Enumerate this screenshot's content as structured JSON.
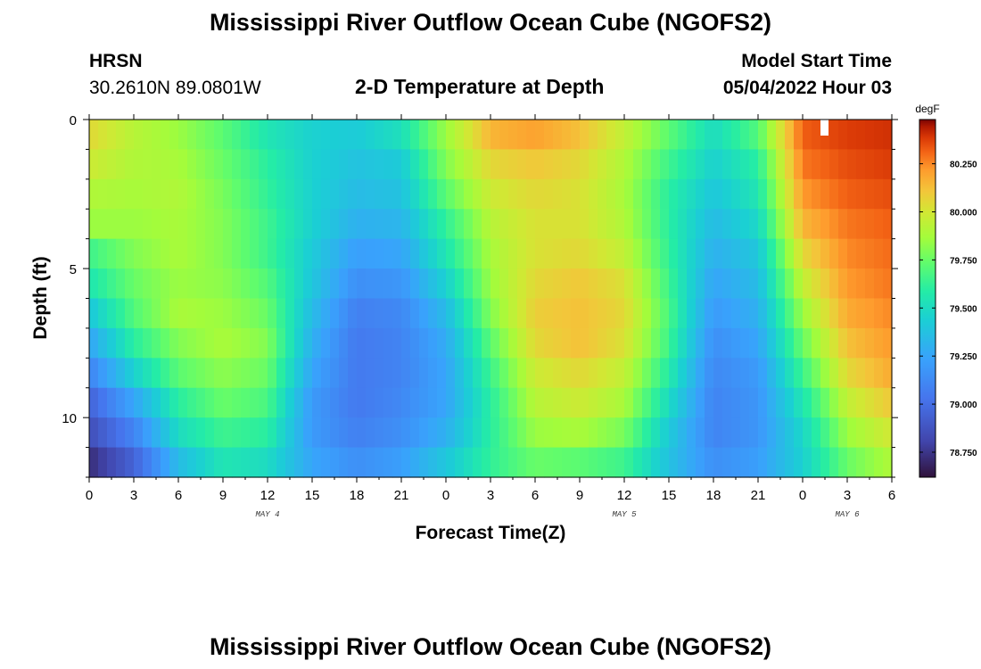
{
  "header": {
    "title": "Mississippi River Outflow Ocean Cube (NGOFS2)",
    "station": "HRSN",
    "coords": "30.2610N  89.0801W",
    "subtitle": "2-D Temperature at Depth",
    "model_start_label": "Model Start Time",
    "model_start_value": "05/04/2022 Hour 03"
  },
  "footer": {
    "title": "Mississippi River Outflow Ocean Cube (NGOFS2)"
  },
  "chart_data": {
    "type": "heatmap",
    "title": "2-D Temperature at Depth",
    "xlabel": "Forecast Time(Z)",
    "ylabel": "Depth (ft)",
    "x_tick_labels": [
      "0",
      "3",
      "6",
      "9",
      "12",
      "15",
      "18",
      "21",
      "0",
      "3",
      "6",
      "9",
      "12",
      "15",
      "18",
      "21",
      "0",
      "3",
      "6"
    ],
    "x_range_hours": [
      0,
      54
    ],
    "date_labels": [
      {
        "text": "MAY 4",
        "hour": 12
      },
      {
        "text": "MAY 5",
        "hour": 36
      },
      {
        "text": "MAY 6",
        "hour": 51
      }
    ],
    "y_tick_labels": [
      "0",
      "5",
      "10"
    ],
    "y_tick_values": [
      0,
      5,
      10
    ],
    "y_range_ft": [
      0,
      12
    ],
    "depth_levels_ft": [
      0.5,
      1.5,
      2.5,
      3.5,
      4.5,
      5.5,
      6.5,
      7.5,
      8.5,
      9.5,
      10.5,
      11.5
    ],
    "time_hours": [
      0,
      3,
      6,
      9,
      12,
      15,
      18,
      21,
      24,
      27,
      30,
      33,
      36,
      39,
      42,
      45,
      48,
      51,
      54
    ],
    "values_degF": [
      [
        80.05,
        79.92,
        79.85,
        79.72,
        79.55,
        79.45,
        79.42,
        79.52,
        79.85,
        80.15,
        80.2,
        80.12,
        79.95,
        79.72,
        79.5,
        79.7,
        80.32,
        80.38,
        80.4
      ],
      [
        79.98,
        79.9,
        79.88,
        79.75,
        79.6,
        79.45,
        79.38,
        79.42,
        79.8,
        80.05,
        80.1,
        80.05,
        79.9,
        79.65,
        79.45,
        79.6,
        80.28,
        80.35,
        80.38
      ],
      [
        79.9,
        79.88,
        79.9,
        79.78,
        79.62,
        79.45,
        79.35,
        79.38,
        79.72,
        79.98,
        80.05,
        80.02,
        79.88,
        79.6,
        79.4,
        79.55,
        80.22,
        80.32,
        80.35
      ],
      [
        79.85,
        79.85,
        79.88,
        79.8,
        79.65,
        79.45,
        79.3,
        79.32,
        79.62,
        79.92,
        80.02,
        80.02,
        79.9,
        79.6,
        79.35,
        79.48,
        80.15,
        80.28,
        80.32
      ],
      [
        79.65,
        79.8,
        79.88,
        79.8,
        79.65,
        79.42,
        79.22,
        79.25,
        79.55,
        79.88,
        80.02,
        80.05,
        79.95,
        79.62,
        79.3,
        79.4,
        80.05,
        80.25,
        80.3
      ],
      [
        79.55,
        79.75,
        79.85,
        79.82,
        79.7,
        79.4,
        79.15,
        79.18,
        79.45,
        79.85,
        80.05,
        80.1,
        80.02,
        79.65,
        79.25,
        79.35,
        79.95,
        80.22,
        80.28
      ],
      [
        79.4,
        79.7,
        79.88,
        79.85,
        79.75,
        79.35,
        79.08,
        79.12,
        79.35,
        79.8,
        80.08,
        80.12,
        80.05,
        79.68,
        79.2,
        79.3,
        79.85,
        80.18,
        80.25
      ],
      [
        79.25,
        79.6,
        79.8,
        79.88,
        79.8,
        79.3,
        79.05,
        79.1,
        79.28,
        79.72,
        80.05,
        80.12,
        80.02,
        79.65,
        79.15,
        79.25,
        79.75,
        80.12,
        80.22
      ],
      [
        79.1,
        79.45,
        79.72,
        79.82,
        79.75,
        79.25,
        79.05,
        79.1,
        79.25,
        79.65,
        79.98,
        80.05,
        79.95,
        79.58,
        79.12,
        79.2,
        79.65,
        80.05,
        80.18
      ],
      [
        78.95,
        79.25,
        79.6,
        79.75,
        79.68,
        79.2,
        79.05,
        79.12,
        79.25,
        79.6,
        79.92,
        79.98,
        79.88,
        79.5,
        79.1,
        79.18,
        79.55,
        79.95,
        80.1
      ],
      [
        78.85,
        79.1,
        79.5,
        79.65,
        79.6,
        79.2,
        79.08,
        79.15,
        79.3,
        79.6,
        79.85,
        79.88,
        79.78,
        79.42,
        79.1,
        79.18,
        79.48,
        79.85,
        80.0
      ],
      [
        78.72,
        78.95,
        79.35,
        79.55,
        79.5,
        79.25,
        79.15,
        79.22,
        79.4,
        79.62,
        79.75,
        79.72,
        79.65,
        79.38,
        79.15,
        79.22,
        79.45,
        79.75,
        79.9
      ]
    ],
    "colorbar": {
      "unit": "degF",
      "min": 78.62,
      "max": 80.48,
      "tick_labels": [
        "80.250",
        "80.000",
        "79.750",
        "79.500",
        "79.250",
        "79.000",
        "78.750"
      ],
      "tick_values": [
        80.25,
        80.0,
        79.75,
        79.5,
        79.25,
        79.0,
        78.75
      ],
      "stops": [
        {
          "v": 0.0,
          "c": "#30123b"
        },
        {
          "v": 0.1,
          "c": "#4145ab"
        },
        {
          "v": 0.22,
          "c": "#4675ed"
        },
        {
          "v": 0.33,
          "c": "#39a2fc"
        },
        {
          "v": 0.44,
          "c": "#1bcfd4"
        },
        {
          "v": 0.52,
          "c": "#24eca6"
        },
        {
          "v": 0.6,
          "c": "#61fc6c"
        },
        {
          "v": 0.67,
          "c": "#a4fc3b"
        },
        {
          "v": 0.74,
          "c": "#d1e834"
        },
        {
          "v": 0.8,
          "c": "#f3c63a"
        },
        {
          "v": 0.86,
          "c": "#fe9b2d"
        },
        {
          "v": 0.91,
          "c": "#f36315"
        },
        {
          "v": 0.95,
          "c": "#d93806"
        },
        {
          "v": 0.98,
          "c": "#b11901"
        },
        {
          "v": 1.0,
          "c": "#7a0403"
        }
      ]
    }
  }
}
